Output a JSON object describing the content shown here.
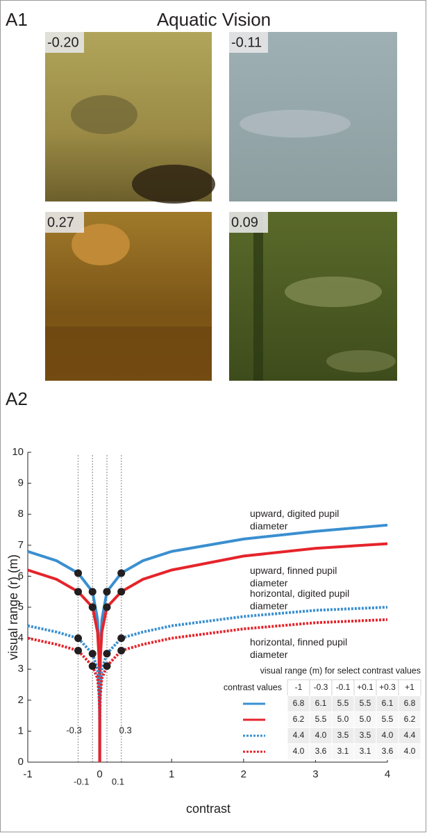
{
  "figure": {
    "label_a1": "A1",
    "title": "Aquatic Vision",
    "label_a2": "A2",
    "photos": [
      {
        "label": "-0.20"
      },
      {
        "label": "-0.11"
      },
      {
        "label": "0.27"
      },
      {
        "label": "0.09"
      }
    ]
  },
  "chart_data": {
    "type": "line",
    "xlabel": "contrast",
    "ylabel": "visual range (r) (m)",
    "x": [
      -1,
      -0.6,
      -0.3,
      -0.1,
      -0.03,
      -0.01,
      -0.003,
      -0.001,
      0,
      0.001,
      0.003,
      0.01,
      0.03,
      0.1,
      0.3,
      0.6,
      1,
      2,
      3,
      4
    ],
    "series": [
      {
        "name": "upward, digited pupil diameter",
        "color": "#3a8fd0",
        "style": "solid",
        "values": [
          6.8,
          6.5,
          6.1,
          5.5,
          4.6,
          3.7,
          2.7,
          1.8,
          0,
          1.8,
          2.7,
          3.7,
          4.6,
          5.5,
          6.1,
          6.5,
          6.8,
          7.2,
          7.45,
          7.65
        ]
      },
      {
        "name": "upward, finned pupil diameter",
        "color": "#e5242b",
        "style": "solid",
        "values": [
          6.2,
          5.9,
          5.5,
          5.0,
          4.2,
          3.4,
          2.5,
          1.7,
          0,
          1.7,
          2.5,
          3.4,
          4.2,
          5.0,
          5.5,
          5.9,
          6.2,
          6.65,
          6.9,
          7.05
        ]
      },
      {
        "name": "horizontal, digited pupil diameter",
        "color": "#3a8fd0",
        "style": "dotted",
        "values": [
          4.4,
          4.2,
          4.0,
          3.5,
          3.0,
          2.5,
          1.9,
          1.3,
          0,
          1.3,
          1.9,
          2.5,
          3.0,
          3.5,
          4.0,
          4.2,
          4.4,
          4.7,
          4.9,
          5.0
        ]
      },
      {
        "name": "horizontal, finned pupil diameter",
        "color": "#e5242b",
        "style": "dotted",
        "values": [
          4.0,
          3.8,
          3.6,
          3.1,
          2.7,
          2.2,
          1.7,
          1.2,
          0,
          1.2,
          1.7,
          2.2,
          2.7,
          3.1,
          3.6,
          3.8,
          4.0,
          4.3,
          4.5,
          4.6
        ]
      }
    ],
    "vlines": [
      -0.3,
      -0.1,
      0.1,
      0.3
    ],
    "xlim": [
      -1,
      4
    ],
    "xticks": [
      -1,
      0,
      1,
      2,
      3,
      4
    ],
    "ylim": [
      0,
      10
    ],
    "yticks": [
      0,
      1,
      2,
      3,
      4,
      5,
      6,
      7,
      8,
      9,
      10
    ],
    "table": {
      "title": "visual range (m) for select contrast values",
      "header": [
        "contrast values",
        "-1",
        "-0.3",
        "-0.1",
        "+0.1",
        "+0.3",
        "+1"
      ],
      "rows": [
        [
          "6.8",
          "6.1",
          "5.5",
          "5.5",
          "6.1",
          "6.8"
        ],
        [
          "6.2",
          "5.5",
          "5.0",
          "5.0",
          "5.5",
          "6.2"
        ],
        [
          "4.4",
          "4.0",
          "3.5",
          "3.5",
          "4.0",
          "4.4"
        ],
        [
          "4.0",
          "3.6",
          "3.1",
          "3.1",
          "3.6",
          "4.0"
        ]
      ]
    }
  }
}
